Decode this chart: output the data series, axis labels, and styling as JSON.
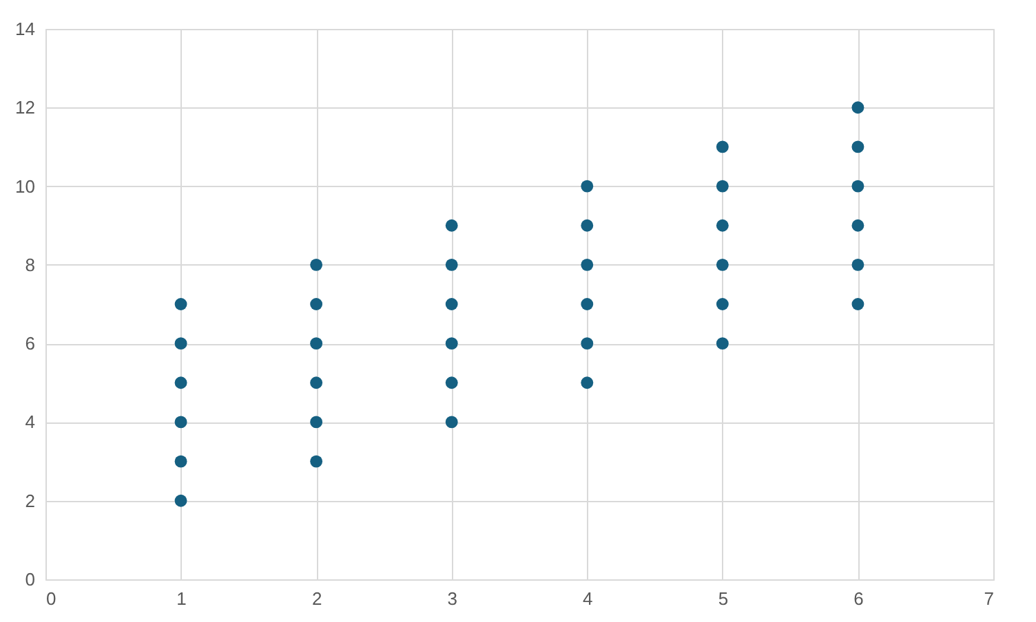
{
  "chart_data": {
    "type": "scatter",
    "x": [
      1,
      1,
      1,
      1,
      1,
      1,
      2,
      2,
      2,
      2,
      2,
      2,
      3,
      3,
      3,
      3,
      3,
      3,
      4,
      4,
      4,
      4,
      4,
      4,
      5,
      5,
      5,
      5,
      5,
      5,
      6,
      6,
      6,
      6,
      6,
      6
    ],
    "series": [
      {
        "color": "#156082",
        "values": [
          2,
          3,
          4,
          5,
          6,
          7,
          3,
          4,
          5,
          6,
          7,
          8,
          4,
          5,
          6,
          7,
          8,
          9,
          5,
          6,
          7,
          8,
          9,
          10,
          6,
          7,
          8,
          9,
          10,
          11,
          7,
          8,
          9,
          10,
          11,
          12
        ]
      }
    ],
    "xlim": [
      0,
      7
    ],
    "xticks": [
      0,
      1,
      2,
      3,
      4,
      5,
      6,
      7
    ],
    "ylim": [
      0,
      14
    ],
    "yticks": [
      0,
      2,
      4,
      6,
      8,
      10,
      12,
      14
    ],
    "grid": true,
    "marker": "circle"
  }
}
